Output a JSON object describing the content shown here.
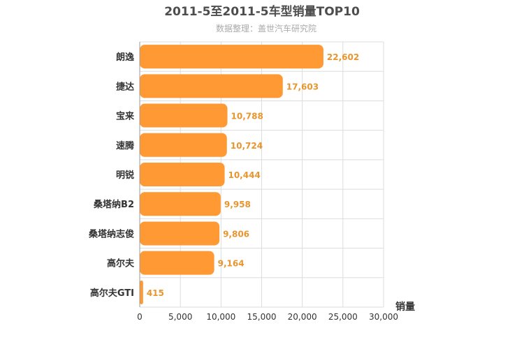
{
  "chart_data": {
    "type": "bar",
    "orientation": "horizontal",
    "title": "2011-5至2011-5车型销量TOP10",
    "subtitle": "数据整理：盖世汽车研究院",
    "xlabel": "销量",
    "ylabel": "",
    "categories": [
      "朗逸",
      "捷达",
      "宝来",
      "速腾",
      "明锐",
      "桑塔纳B2",
      "桑塔纳志俊",
      "高尔夫",
      "高尔夫GTI"
    ],
    "values": [
      22602,
      17603,
      10788,
      10724,
      10444,
      9958,
      9806,
      9164,
      415
    ],
    "value_labels": [
      "22,602",
      "17,603",
      "10,788",
      "10,724",
      "10,444",
      "9,958",
      "9,806",
      "9,164",
      "415"
    ],
    "xlim": [
      0,
      30000
    ],
    "x_ticks": [
      0,
      5000,
      10000,
      15000,
      20000,
      25000,
      30000
    ],
    "x_tick_labels": [
      "0",
      "5,000",
      "10,000",
      "15,000",
      "20,000",
      "25,000",
      "30,000"
    ],
    "grid": true,
    "legend": "none",
    "colors": {
      "bar": "#FF9933",
      "value_label": "#E8952E",
      "title": "#4D4D4D",
      "subtitle": "#AAAAAA",
      "grid": "#DDDDDD",
      "axis_text": "#333333"
    }
  }
}
